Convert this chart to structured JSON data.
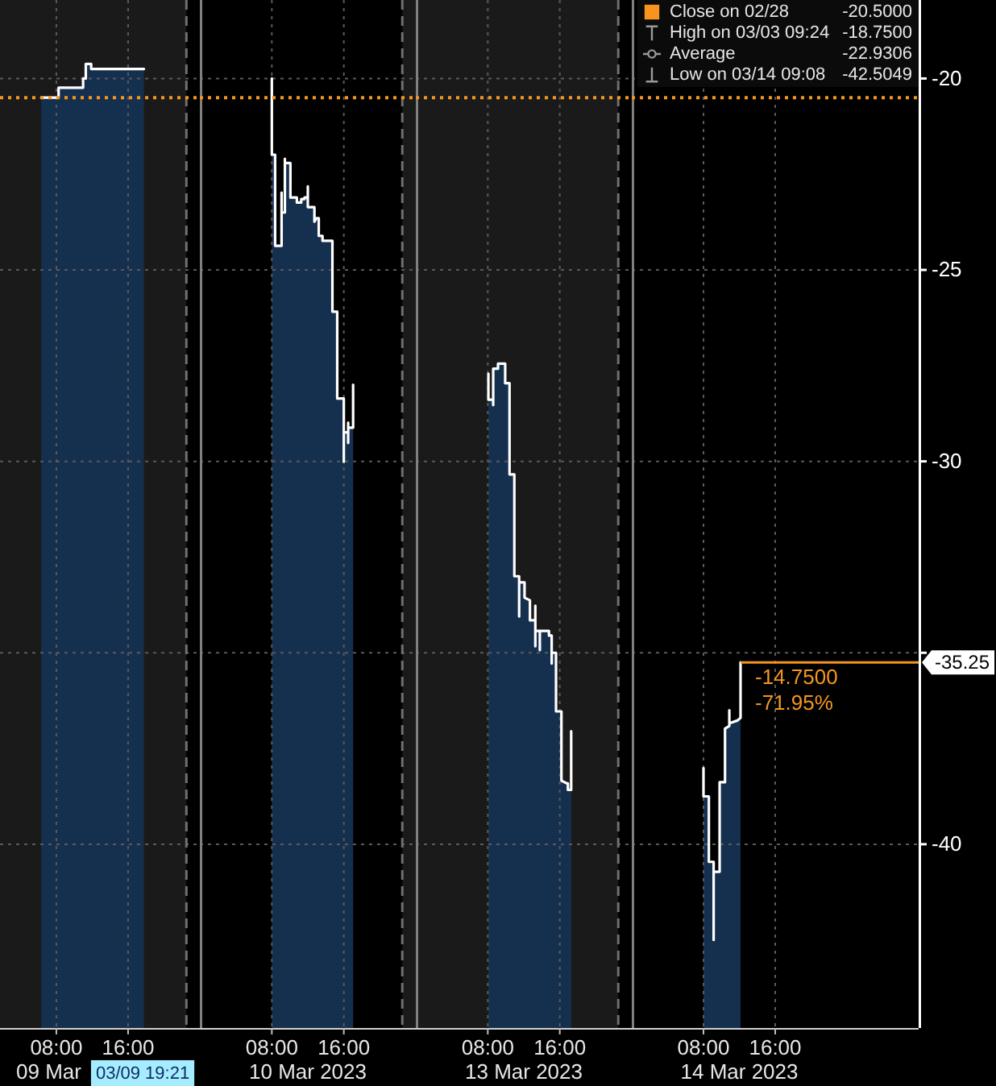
{
  "chart_data": [
    {
      "type": "line",
      "xlabel": "09 Mar",
      "x": [
        "2023-03-09T06:19",
        "2023-03-09T08:15",
        "2023-03-09T08:15",
        "2023-03-09T10:59",
        "2023-03-09T10:59",
        "2023-03-09T11:17",
        "2023-03-09T11:17",
        "2023-03-09T11:53",
        "2023-03-09T11:53",
        "2023-03-09T17:46"
      ],
      "series": [
        {
          "color": "#ffffff",
          "values": [
            -20.5,
            -20.5,
            -20.24,
            -20.24,
            -20,
            -20,
            -19.62,
            -19.62,
            -19.75,
            -19.75
          ],
          "upper": [
            -20.5,
            -20.5,
            -20.24,
            -20.24,
            -20,
            -20,
            -19.62,
            -19.62,
            -19.75,
            -19.75
          ],
          "lower": [
            -44.8,
            -44.8,
            -44.8,
            -44.8,
            -44.8,
            -44.8,
            -44.8,
            -44.8,
            -44.8,
            -44.8
          ]
        }
      ],
      "xlim": [
        "2023-03-09T01:43",
        "2023-03-10T00:00"
      ],
      "xticks": [
        {
          "value": "2023-03-09T08:00",
          "label": "08:00"
        },
        {
          "value": "2023-03-09T16:00",
          "label": "16:00"
        }
      ],
      "ylim": [
        -44.8,
        -17.95
      ],
      "yticks": [
        -40,
        -35,
        -30,
        -25,
        -20
      ],
      "tick_labels": "x",
      "grid": true,
      "ref_lines": [
        {
          "axis": "y",
          "value": -20.5,
          "color": "#f7941d",
          "line_style": "dotted"
        },
        {
          "axis": "x",
          "value": "2023-03-09T22:30",
          "color": "#707070",
          "line_style": "dashed"
        }
      ],
      "bands": [
        {
          "axis": "x",
          "from": "2023-03-09T01:43",
          "to": "2023-03-09T22:30",
          "color": "#1a1a1a"
        }
      ],
      "annotations": [
        "03/09 19:21"
      ]
    },
    {
      "type": "line",
      "xlabel": "10 Mar 2023",
      "x": [
        "2023-03-10T08:00",
        "2023-03-10T08:00",
        "2023-03-10T08:22",
        "2023-03-10T08:22",
        "2023-03-10T09:05",
        "2023-03-10T09:05",
        "2023-03-10T09:05",
        "2023-03-10T09:27",
        "2023-03-10T09:27",
        "2023-03-10T09:27",
        "2023-03-10T10:04",
        "2023-03-10T10:04",
        "2023-03-10T10:47",
        "2023-03-10T10:47",
        "2023-03-10T11:16",
        "2023-03-10T11:16",
        "2023-03-10T11:38",
        "2023-03-10T11:38",
        "2023-03-10T12:00",
        "2023-03-10T12:00",
        "2023-03-10T12:00",
        "2023-03-10T12:44",
        "2023-03-10T12:44",
        "2023-03-10T12:58",
        "2023-03-10T13:13",
        "2023-03-10T13:13",
        "2023-03-10T13:38",
        "2023-03-10T13:38",
        "2023-03-10T14:44",
        "2023-03-10T14:44",
        "2023-03-10T15:16",
        "2023-03-10T15:16",
        "2023-03-10T16:00",
        "2023-03-10T16:00",
        "2023-03-10T16:00",
        "2023-03-10T16:29",
        "2023-03-10T16:29",
        "2023-03-10T16:29",
        "2023-03-10T16:29",
        "2023-03-10T17:02",
        "2023-03-10T17:02"
      ],
      "series": [
        {
          "color": "#ffffff",
          "values": [
            -20,
            -21.99,
            -21.99,
            -24.37,
            -24.37,
            -22.98,
            -23.5,
            -23.5,
            -22.1,
            -22.21,
            -22.21,
            -23.11,
            -23.11,
            -23.24,
            -23.24,
            -23.15,
            -23.15,
            -23.11,
            -23.11,
            -22.82,
            -23.36,
            -23.36,
            -23.74,
            -23.65,
            -23.65,
            -24.11,
            -24.11,
            -24.24,
            -24.24,
            -26.09,
            -26.09,
            -28.36,
            -28.36,
            -30.01,
            -29.24,
            -29.24,
            -28.99,
            -29.52,
            -29.12,
            -29.12,
            -28
          ],
          "upper": [
            -20,
            -21.99,
            -21.99,
            -24.37,
            -24.37,
            -22.98,
            -23.5,
            -23.5,
            -22.1,
            -22.21,
            -22.21,
            -23.11,
            -23.11,
            -23.24,
            -23.24,
            -23.15,
            -23.15,
            -23.11,
            -23.11,
            -22.82,
            -23.36,
            -23.36,
            -23.74,
            -23.65,
            -23.65,
            -24.11,
            -24.11,
            -24.24,
            -24.24,
            -26.09,
            -26.09,
            -28.36,
            -28.36,
            -30.01,
            -29.24,
            -29.24,
            -28.99,
            -29.52,
            -29.12,
            -29.12,
            -28
          ],
          "lower": [
            -44.8,
            -44.8,
            -44.8,
            -44.8,
            -44.8,
            -44.8,
            -44.8,
            -44.8,
            -44.8,
            -44.8,
            -44.8,
            -44.8,
            -44.8,
            -44.8,
            -44.8,
            -44.8,
            -44.8,
            -44.8,
            -44.8,
            -44.8,
            -44.8,
            -44.8,
            -44.8,
            -44.8,
            -44.8,
            -44.8,
            -44.8,
            -44.8,
            -44.8,
            -44.8,
            -44.8,
            -44.8,
            -44.8,
            -44.8,
            -44.8,
            -44.8,
            -44.8,
            -44.8,
            -44.8,
            -44.8,
            -44.8
          ]
        }
      ],
      "xlim": [
        "2023-03-10T00:00",
        "2023-03-11T00:00"
      ],
      "xticks": [
        {
          "value": "2023-03-10T08:00",
          "label": "08:00"
        },
        {
          "value": "2023-03-10T16:00",
          "label": "16:00"
        }
      ],
      "ylim": [
        -44.8,
        -17.95
      ],
      "yticks": [
        -40,
        -35,
        -30,
        -25,
        -20
      ],
      "tick_labels": "x",
      "grid": true,
      "ref_lines": [
        {
          "axis": "y",
          "value": -20.5,
          "color": "#f7941d",
          "line_style": "dotted"
        },
        {
          "axis": "x",
          "value": "2023-03-10T22:30",
          "color": "#707070",
          "line_style": "dashed"
        }
      ],
      "bands": [
        {
          "axis": "x",
          "from": "2023-03-10T22:30",
          "to": "2023-03-11T00:00",
          "color": "#1a1a1a"
        }
      ]
    },
    {
      "type": "line",
      "xlabel": "13 Mar 2023",
      "x": [
        "2023-03-13T08:04",
        "2023-03-13T08:04",
        "2023-03-13T08:36",
        "2023-03-13T08:36",
        "2023-03-13T08:36",
        "2023-03-13T09:08",
        "2023-03-13T09:08",
        "2023-03-13T09:56",
        "2023-03-13T09:56",
        "2023-03-13T10:25",
        "2023-03-13T10:25",
        "2023-03-13T10:57",
        "2023-03-13T10:57",
        "2023-03-13T11:29",
        "2023-03-13T11:29",
        "2023-03-13T11:29",
        "2023-03-13T12:05",
        "2023-03-13T12:05",
        "2023-03-13T12:41",
        "2023-03-13T12:41",
        "2023-03-13T13:17",
        "2023-03-13T13:17",
        "2023-03-13T13:17",
        "2023-03-13T13:17",
        "2023-03-13T13:47",
        "2023-03-13T13:47",
        "2023-03-13T13:47",
        "2023-03-13T14:48",
        "2023-03-13T14:48",
        "2023-03-13T15:06",
        "2023-03-13T15:06",
        "2023-03-13T15:06",
        "2023-03-13T15:35",
        "2023-03-13T15:35",
        "2023-03-13T16:11",
        "2023-03-13T16:11",
        "2023-03-13T16:47",
        "2023-03-13T16:54",
        "2023-03-13T16:54",
        "2023-03-13T17:16",
        "2023-03-13T17:16"
      ],
      "series": [
        {
          "color": "#ffffff",
          "values": [
            -27.71,
            -28.39,
            -28.39,
            -28.53,
            -27.58,
            -27.58,
            -27.45,
            -27.45,
            -27.96,
            -27.96,
            -30.34,
            -30.34,
            -33,
            -33,
            -34.05,
            -33.16,
            -33.16,
            -33.56,
            -33.63,
            -34.15,
            -34.15,
            -33.77,
            -34.83,
            -34.43,
            -34.43,
            -34.93,
            -34.43,
            -34.43,
            -34.55,
            -34.55,
            -35.28,
            -35,
            -35,
            -36.53,
            -36.53,
            -38.34,
            -38.41,
            -38.41,
            -38.58,
            -38.58,
            -37.05
          ],
          "upper": [
            -27.71,
            -28.39,
            -28.39,
            -28.53,
            -27.58,
            -27.58,
            -27.45,
            -27.45,
            -27.96,
            -27.96,
            -30.34,
            -30.34,
            -33,
            -33,
            -34.05,
            -33.16,
            -33.16,
            -33.56,
            -33.63,
            -34.15,
            -34.15,
            -33.77,
            -34.83,
            -34.43,
            -34.43,
            -34.93,
            -34.43,
            -34.43,
            -34.55,
            -34.55,
            -35.28,
            -35,
            -35,
            -36.53,
            -36.53,
            -38.34,
            -38.41,
            -38.41,
            -38.58,
            -38.58,
            -37.05
          ],
          "lower": [
            -44.8,
            -44.8,
            -44.8,
            -44.8,
            -44.8,
            -44.8,
            -44.8,
            -44.8,
            -44.8,
            -44.8,
            -44.8,
            -44.8,
            -44.8,
            -44.8,
            -44.8,
            -44.8,
            -44.8,
            -44.8,
            -44.8,
            -44.8,
            -44.8,
            -44.8,
            -44.8,
            -44.8,
            -44.8,
            -44.8,
            -44.8,
            -44.8,
            -44.8,
            -44.8,
            -44.8,
            -44.8,
            -44.8,
            -44.8,
            -44.8,
            -44.8,
            -44.8,
            -44.8,
            -44.8,
            -44.8,
            -44.8
          ]
        }
      ],
      "xlim": [
        "2023-03-13T00:00",
        "2023-03-14T00:00"
      ],
      "xticks": [
        {
          "value": "2023-03-13T08:00",
          "label": "08:00"
        },
        {
          "value": "2023-03-13T16:00",
          "label": "16:00"
        }
      ],
      "ylim": [
        -44.8,
        -17.95
      ],
      "yticks": [
        -40,
        -35,
        -30,
        -25,
        -20
      ],
      "tick_labels": "x",
      "grid": true,
      "ref_lines": [
        {
          "axis": "y",
          "value": -20.5,
          "color": "#f7941d",
          "line_style": "dotted"
        },
        {
          "axis": "x",
          "value": "2023-03-13T22:30",
          "color": "#707070",
          "line_style": "dashed"
        }
      ],
      "bands": [
        {
          "axis": "x",
          "from": "2023-03-13T00:00",
          "to": "2023-03-13T22:30",
          "color": "#1a1a1a"
        }
      ]
    },
    {
      "type": "line",
      "xlabel": "14 Mar 2023",
      "x": [
        "2023-03-14T08:00",
        "2023-03-14T08:00",
        "2023-03-14T08:36",
        "2023-03-14T08:36",
        "2023-03-14T09:08",
        "2023-03-14T09:08",
        "2023-03-14T09:08",
        "2023-03-14T09:48",
        "2023-03-14T09:48",
        "2023-03-14T10:24",
        "2023-03-14T10:24",
        "2023-03-14T10:53",
        "2023-03-14T10:53",
        "2023-03-14T10:53",
        "2023-03-14T11:47",
        "2023-03-14T12:08",
        "2023-03-14T12:08"
      ],
      "series": [
        {
          "color": "#ffffff",
          "values": [
            -38.01,
            -38.75,
            -38.75,
            -40.46,
            -40.46,
            -42.5,
            -40.72,
            -40.72,
            -38.38,
            -38.38,
            -36.98,
            -36.91,
            -36.5,
            -36.84,
            -36.77,
            -36.7,
            -35.25
          ],
          "upper": [
            -38.01,
            -38.75,
            -38.75,
            -40.46,
            -40.46,
            -42.5,
            -40.72,
            -40.72,
            -38.38,
            -38.38,
            -36.98,
            -36.91,
            -36.5,
            -36.84,
            -36.77,
            -36.7,
            -35.25
          ],
          "lower": [
            -44.8,
            -44.8,
            -44.8,
            -44.8,
            -44.8,
            -44.8,
            -44.8,
            -44.8,
            -44.8,
            -44.8,
            -44.8,
            -44.8,
            -44.8,
            -44.8,
            -44.8,
            -44.8,
            -44.8
          ],
          "value_labels": [
            null,
            null,
            null,
            null,
            null,
            null,
            null,
            null,
            null,
            null,
            null,
            null,
            null,
            null,
            null,
            null,
            "-35.25"
          ]
        }
      ],
      "xlim": [
        "2023-03-14T00:00",
        "2023-03-15T08:00"
      ],
      "xticks": [
        {
          "value": "2023-03-14T08:00",
          "label": "08:00"
        },
        {
          "value": "2023-03-14T16:00",
          "label": "16:00"
        }
      ],
      "ylim": [
        -44.8,
        -17.95
      ],
      "yticks": [
        -40,
        {
          "value": -35,
          "label": null
        },
        -30,
        -25,
        -20
      ],
      "grid": true,
      "ref_lines": [
        {
          "axis": "y",
          "value": -20.5,
          "color": "#f7941d",
          "line_style": "dotted"
        }
      ],
      "annotations": [
        "Close on 02/28",
        "-20.5000",
        "High on 03/03 09:24",
        "-18.7500",
        "Average",
        "-22.9306",
        "Low on 03/14 09:08",
        "-42.5049",
        {
          "text": "-14.7500",
          "x": "2023-03-14T12:08",
          "y": -35.25
        },
        {
          "text": "-71.95%",
          "x": "2023-03-14T12:08",
          "y": -35.25
        }
      ]
    }
  ]
}
